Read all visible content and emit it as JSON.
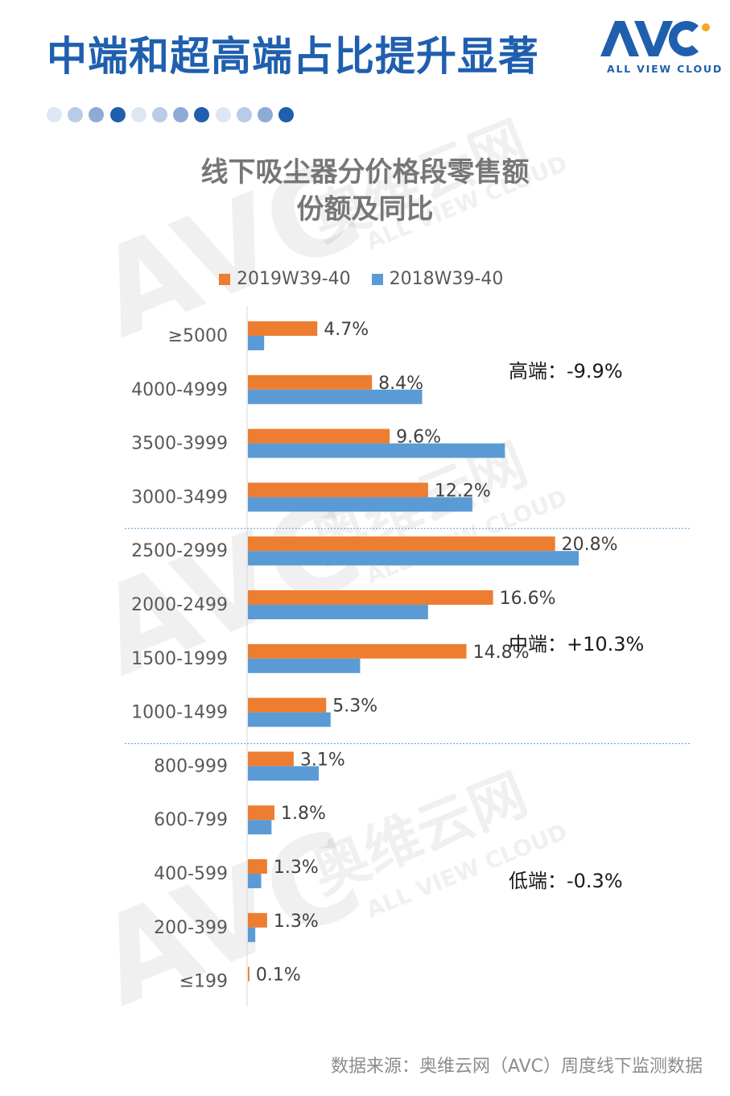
{
  "header": {
    "title": "中端和超高端占比提升显著",
    "logo_text": "ALL VIEW CLOUD",
    "dots": [
      "#dde6f3",
      "#b9cbe6",
      "#8eaad7",
      "#1f5fae",
      "#dde6f3",
      "#b9cbe6",
      "#8eaad7",
      "#1f5fae",
      "#dde6f3",
      "#b9cbe6",
      "#8eaad7",
      "#1f5fae"
    ]
  },
  "chart_title": {
    "line1": "线下吸尘器分价格段零售额",
    "line2": "份额及同比"
  },
  "annotations": {
    "high": "高端：-9.9%",
    "mid": "中端：+10.3%",
    "low": "低端：-0.3%"
  },
  "source": "数据来源：奥维云网（AVC）周度线下监测数据",
  "watermark": {
    "cn": "奥维云网",
    "en": "ALL VIEW CLOUD",
    "brand": "AVC"
  },
  "colors": {
    "series_2019": "#ed7d31",
    "series_2018": "#5b9bd5",
    "brand": "#1f5fae",
    "divider": "#5b9bd5"
  },
  "chart_data": {
    "type": "bar",
    "orientation": "horizontal",
    "categories": [
      "≥5000",
      "4000-4999",
      "3500-3999",
      "3000-3499",
      "2500-2999",
      "2000-2499",
      "1500-1999",
      "1000-1499",
      "800-999",
      "600-799",
      "400-599",
      "200-399",
      "≤199"
    ],
    "series": [
      {
        "name": "2019W39-40",
        "values": [
          4.7,
          8.4,
          9.6,
          12.2,
          20.8,
          16.6,
          14.8,
          5.3,
          3.1,
          1.8,
          1.3,
          1.3,
          0.1
        ],
        "labels": [
          "4.7%",
          "8.4%",
          "9.6%",
          "12.2%",
          "20.8%",
          "16.6%",
          "14.8%",
          "5.3%",
          "3.1%",
          "1.8%",
          "1.3%",
          "1.3%",
          "0.1%"
        ]
      },
      {
        "name": "2018W39-40",
        "values": [
          1.1,
          11.8,
          17.4,
          15.2,
          22.4,
          12.2,
          7.6,
          5.6,
          4.8,
          1.6,
          0.9,
          0.5,
          0.0
        ]
      }
    ],
    "legend_position": "top",
    "grid": false,
    "segment_dividers_after": [
      "3000-3499",
      "1000-1499"
    ]
  }
}
